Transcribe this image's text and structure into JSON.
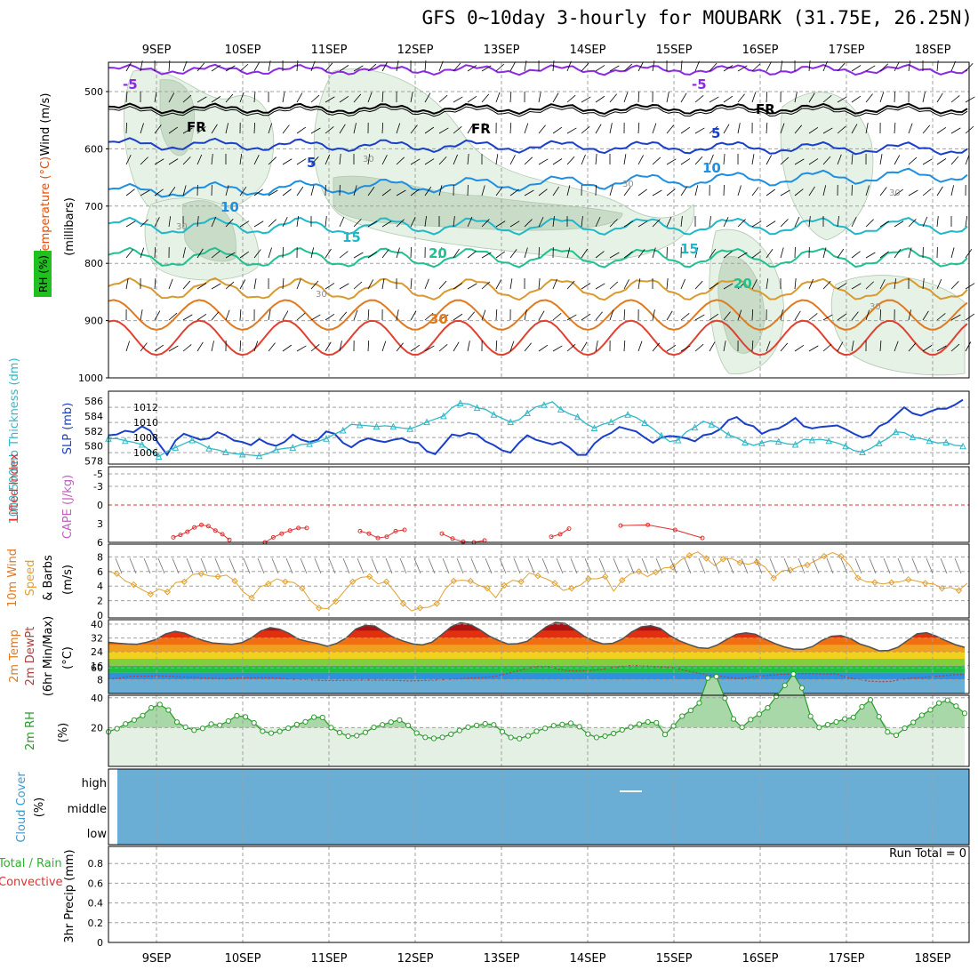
{
  "title": "GFS 0~10day 3-hourly for MOUBARK (31.75E, 26.25N)",
  "days": [
    "9SEP",
    "10SEP",
    "11SEP",
    "12SEP",
    "13SEP",
    "14SEP",
    "15SEP",
    "16SEP",
    "17SEP",
    "18SEP"
  ],
  "colors": {
    "gridline": "#a0a0a0",
    "rh_light": "#e6f2e6",
    "rh_mid": "#c8dcc8",
    "rh_dark": "#90a890",
    "slp": "#1a3fc8",
    "thickness": "#30b8c8",
    "lifted_index": "#e03030",
    "wind10m": "#e0a030",
    "temp_dark": "#505050",
    "rh2m": "#2a9a2a",
    "cloud": "#6aaed6",
    "precip_total": "#30b030",
    "precip_conv": "#e03030"
  },
  "panels": {
    "upper": {
      "label_wind": "Wind (m/s)",
      "label_temp": "Temperature (°C)",
      "label_rh": "RH (%)",
      "label_axis": "(millibars)",
      "yticks": [
        "500",
        "600",
        "700",
        "800",
        "900",
        "1000"
      ],
      "contour_labels": [
        {
          "text": "-5",
          "iso": "-5"
        },
        {
          "text": "-5",
          "iso": "-5"
        },
        {
          "text": "FR",
          "iso": "0"
        },
        {
          "text": "FR",
          "iso": "0"
        },
        {
          "text": "FR",
          "iso": "0"
        },
        {
          "text": "5",
          "iso": "5"
        },
        {
          "text": "5",
          "iso": "5"
        },
        {
          "text": "10",
          "iso": "10"
        },
        {
          "text": "10",
          "iso": "10"
        },
        {
          "text": "15",
          "iso": "15"
        },
        {
          "text": "15",
          "iso": "15"
        },
        {
          "text": "20",
          "iso": "20"
        },
        {
          "text": "20",
          "iso": "20"
        },
        {
          "text": "30",
          "iso": "30"
        },
        {
          "text": "30",
          "iso": "rh"
        },
        {
          "text": "30",
          "iso": "rh"
        },
        {
          "text": "30",
          "iso": "rh"
        },
        {
          "text": "30",
          "iso": "rh"
        },
        {
          "text": "30",
          "iso": "rh"
        },
        {
          "text": "30",
          "iso": "rh"
        }
      ]
    },
    "slp": {
      "label_thick": "1000-500mb Thickness (dm)",
      "label_slp": "SLP (mb)",
      "left_ticks": [
        "586",
        "584",
        "582",
        "580",
        "578"
      ],
      "right_ticks": [
        "1012",
        "1010",
        "1008",
        "1006"
      ]
    },
    "li": {
      "label_li": "Lifted Index",
      "label_cape": "CAPE (J/kg)",
      "ticks": [
        "-5",
        "-3",
        "0",
        "3",
        "6"
      ]
    },
    "wind10": {
      "label_1": "10m Wind",
      "label_2": "Speed",
      "label_3": "& Barbs",
      "label_unit": "(m/s)",
      "ticks": [
        "8",
        "6",
        "4",
        "2",
        "0"
      ]
    },
    "temp2m": {
      "label_1": "2m Temp",
      "label_2": "2m DewPt",
      "label_3": "(6hr Min/Max)",
      "label_unit": "(°C)",
      "ticks": [
        "40",
        "32",
        "24",
        "16",
        "8",
        "0"
      ]
    },
    "rh2m": {
      "label_1": "2m RH",
      "label_unit": "(%)",
      "ticks": [
        "60",
        "40",
        "20"
      ]
    },
    "cloud": {
      "label_1": "Cloud Cover",
      "label_unit": "(%)",
      "ticks": [
        "high",
        "middle",
        "low"
      ]
    },
    "precip": {
      "label_1": "Total / Rain",
      "label_2": "Convective",
      "label_3": "3hr Precip (mm)",
      "run_total": "Run Total = 0",
      "ticks": [
        "0.8",
        "0.6",
        "0.4",
        "0.2",
        "0"
      ]
    }
  },
  "chart_data": [
    {
      "type": "line",
      "title": "SLP (mb)",
      "ylabel": "SLP (mb)",
      "ylim": [
        1004.5,
        1013.5
      ],
      "series": [
        {
          "name": "SLP",
          "values": [
            1008.3,
            1008.4,
            1008.9,
            1008.7,
            1009.5,
            1008.9,
            1007.2,
            1005.7,
            1007.6,
            1008.5,
            1008.1,
            1007.7,
            1007.9,
            1008.7,
            1008.3,
            1007.6,
            1007.4,
            1007.0,
            1007.8,
            1007.2,
            1006.9,
            1007.4,
            1008.4,
            1007.7,
            1007.4,
            1007.7,
            1008.8,
            1008.5,
            1007.3,
            1006.7,
            1007.5,
            1007.9,
            1007.6,
            1007.4,
            1007.7,
            1007.9,
            1007.4,
            1007.3,
            1006.2,
            1005.8,
            1007.1,
            1008.4,
            1008.2,
            1008.6,
            1008.4,
            1007.5,
            1007.0,
            1006.3,
            1006.0,
            1007.3,
            1008.3,
            1007.7,
            1007.4,
            1007.1,
            1007.4,
            1006.7,
            1005.7,
            1005.7,
            1007.2,
            1008.1,
            1008.6,
            1009.4,
            1009.1,
            1008.8,
            1008.0,
            1007.3,
            1008.0,
            1008.2,
            1008.1,
            1007.9,
            1007.5,
            1008.3,
            1008.5,
            1009.1,
            1010.3,
            1010.7,
            1009.8,
            1009.5,
            1008.5,
            1009.0,
            1009.2,
            1009.8,
            1010.6,
            1009.5,
            1009.2,
            1009.4,
            1009.5,
            1009.6,
            1009.1,
            1008.5,
            1008.0,
            1008.3,
            1009.5,
            1010.0,
            1011.0,
            1012.0,
            1011.2,
            1010.9,
            1011.4,
            1011.8,
            1011.8,
            1012.3,
            1013.0
          ]
        }
      ]
    },
    {
      "type": "line",
      "title": "1000-500mb Thickness (dm)",
      "ylabel": "1000-500mb Thickness (dm)",
      "ylim": [
        577.7,
        587.0
      ],
      "series": [
        {
          "name": "Thickness",
          "values": [
            581.0,
            581.0,
            580.7,
            580.5,
            580.2,
            579.4,
            578.6,
            579.3,
            579.8,
            580.3,
            580.8,
            580.3,
            579.7,
            579.5,
            579.2,
            579.0,
            578.9,
            578.8,
            578.7,
            579.0,
            579.5,
            579.7,
            579.8,
            580.2,
            580.3,
            580.6,
            581.0,
            581.6,
            582.1,
            582.9,
            582.8,
            582.7,
            582.6,
            582.7,
            582.6,
            582.4,
            582.3,
            582.7,
            583.2,
            583.6,
            584.0,
            585.1,
            585.7,
            585.6,
            585.1,
            584.9,
            584.2,
            583.7,
            583.2,
            583.5,
            584.4,
            585.2,
            585.5,
            585.9,
            584.9,
            584.3,
            583.9,
            583.0,
            582.4,
            582.9,
            583.2,
            583.8,
            584.2,
            583.8,
            583.1,
            582.3,
            581.4,
            580.6,
            580.8,
            581.9,
            582.5,
            583.3,
            582.9,
            582.3,
            581.5,
            581.1,
            580.5,
            580.1,
            580.4,
            580.7,
            580.6,
            580.3,
            580.2,
            580.9,
            580.8,
            580.9,
            580.7,
            580.4,
            580.0,
            579.4,
            579.2,
            579.7,
            580.4,
            581.0,
            581.9,
            581.8,
            581.2,
            581.0,
            580.7,
            580.4,
            580.5,
            580.1,
            580.0
          ]
        }
      ]
    },
    {
      "type": "line",
      "title": "Lifted Index",
      "ylabel": "Lifted Index",
      "ylim": [
        -5,
        6
      ],
      "series": [
        {
          "name": "Lifted Index",
          "values": [
            5.2,
            4.8,
            4.3,
            3.6,
            3.2,
            3.4,
            4.1,
            4.7,
            5.6,
            6.0,
            5.2,
            4.6,
            4.1,
            3.7,
            3.7,
            4.2,
            4.6,
            5.3,
            5.1,
            4.2,
            4.0,
            4.6,
            5.4,
            5.9,
            6.0,
            5.7,
            5.1,
            4.7,
            3.8,
            3.3,
            3.2,
            4.0,
            5.3
          ]
        }
      ]
    },
    {
      "type": "line",
      "title": "10m Wind Speed",
      "ylabel": "(m/s)",
      "ylim": [
        0,
        9
      ],
      "series": [
        {
          "name": "10m Wind Speed",
          "values": [
            6.0,
            5.7,
            4.7,
            4.2,
            3.5,
            2.9,
            3.6,
            3.2,
            4.5,
            4.6,
            5.6,
            5.7,
            5.4,
            5.3,
            5.5,
            4.7,
            3.2,
            2.4,
            3.9,
            4.3,
            5.0,
            4.6,
            4.5,
            3.7,
            2.0,
            1.0,
            0.9,
            1.9,
            3.3,
            4.6,
            5.2,
            5.3,
            4.3,
            4.6,
            3.2,
            1.6,
            0.6,
            1.0,
            1.1,
            1.6,
            3.6,
            4.7,
            4.8,
            4.7,
            4.1,
            3.7,
            2.4,
            4.1,
            4.8,
            4.6,
            5.8,
            5.4,
            5.0,
            4.4,
            3.4,
            3.7,
            4.1,
            5.0,
            5.0,
            5.3,
            3.3,
            4.8,
            5.7,
            6.0,
            5.3,
            5.9,
            6.5,
            6.6,
            7.6,
            8.2,
            8.7,
            7.8,
            6.8,
            7.7,
            7.8,
            7.2,
            7.0,
            7.3,
            6.6,
            5.1,
            6.1,
            6.2,
            6.7,
            6.9,
            7.5,
            8.1,
            8.6,
            8.1,
            6.9,
            5.1,
            4.6,
            4.5,
            4.3,
            4.5,
            4.6,
            4.9,
            4.7,
            4.4,
            4.3,
            3.7,
            3.8,
            3.4,
            4.4
          ]
        }
      ]
    },
    {
      "type": "area",
      "title": "2m Temp",
      "ylabel": "(°C)",
      "ylim": [
        0,
        42
      ],
      "series": [
        {
          "name": "2m Temp",
          "values": [
            29.5,
            29.0,
            28.6,
            28.4,
            29.5,
            31.2,
            34.3,
            35.8,
            34.8,
            32.4,
            30.5,
            29.1,
            28.7,
            28.4,
            29.3,
            32.0,
            36.0,
            38.0,
            37.1,
            34.6,
            31.3,
            29.9,
            28.8,
            27.3,
            28.9,
            32.1,
            37.2,
            39.3,
            38.9,
            35.4,
            32.3,
            30.2,
            28.6,
            28.0,
            29.6,
            33.8,
            38.4,
            40.8,
            39.9,
            36.9,
            33.2,
            30.6,
            28.5,
            28.7,
            30.1,
            34.2,
            38.4,
            41.0,
            40.4,
            36.9,
            33.1,
            30.3,
            28.6,
            28.9,
            31.3,
            35.5,
            38.4,
            39.1,
            37.6,
            33.5,
            30.4,
            28.3,
            26.4,
            26.0,
            28.0,
            31.2,
            34.1,
            35.0,
            34.2,
            31.4,
            28.9,
            26.9,
            25.6,
            25.5,
            27.1,
            30.6,
            33.0,
            33.4,
            31.7,
            28.5,
            26.8,
            24.6,
            24.8,
            26.7,
            30.6,
            34.4,
            35.1,
            33.1,
            30.5,
            28.2,
            26.6
          ]
        },
        {
          "name": "2m DewPt",
          "values": [
            8.4,
            8.8,
            9.9,
            10.0,
            10.1,
            10.2,
            9.9,
            9.5,
            9.4,
            9.0,
            8.7,
            8.5,
            9.0,
            9.0,
            9.2,
            9.1,
            8.8,
            8.3,
            8.1,
            7.8,
            7.5,
            7.5,
            7.6,
            7.7,
            7.8,
            7.7,
            7.6,
            7.5,
            7.3,
            7.4,
            7.6,
            7.9,
            8.2,
            8.6,
            9.0,
            9.2,
            9.8,
            11.0,
            12.6,
            14.3,
            15.5,
            15.7,
            14.1,
            13.1,
            12.9,
            13.3,
            13.9,
            14.8,
            15.7,
            16.2,
            16.0,
            15.6,
            15.2,
            14.7,
            13.0,
            11.9,
            10.6,
            10.1,
            9.3,
            8.5,
            9.5,
            10.1,
            10.6,
            11.1,
            11.3,
            11.5,
            11.4,
            11.2,
            11.4,
            9.2,
            8.3,
            7.2,
            6.8,
            6.9,
            8.0,
            9.0,
            9.2,
            9.8,
            10.2,
            10.8,
            10.9
          ]
        }
      ]
    },
    {
      "type": "area",
      "title": "2m RH",
      "ylabel": "(%)",
      "ylim": [
        0,
        60
      ],
      "series": [
        {
          "name": "2m RH",
          "values": [
            17.2,
            19.3,
            22.5,
            25.1,
            28.1,
            33.3,
            35.5,
            31.8,
            23.7,
            20.3,
            18.3,
            19.5,
            22.4,
            21.6,
            24.4,
            28.0,
            27.2,
            23.2,
            17.6,
            16.3,
            17.5,
            19.6,
            22.1,
            23.9,
            27.0,
            26.8,
            20.0,
            16.7,
            14.3,
            14.6,
            16.8,
            20.2,
            21.9,
            23.7,
            25.1,
            21.5,
            16.4,
            13.5,
            12.8,
            13.5,
            15.6,
            18.1,
            20.3,
            21.5,
            22.6,
            21.9,
            17.3,
            13.4,
            12.6,
            14.5,
            17.6,
            19.5,
            21.3,
            22.1,
            22.9,
            20.6,
            15.7,
            13.4,
            14.3,
            16.1,
            18.5,
            20.4,
            22.3,
            23.8,
            23.3,
            15.4,
            21.1,
            27.7,
            31.5,
            36.5,
            53.2,
            54.2,
            39.7,
            25.8,
            20.2,
            25.4,
            29.0,
            33.3,
            41.0,
            48.3,
            55.9,
            46.6,
            27.6,
            20.1,
            22.0,
            23.8,
            25.8,
            26.9,
            34.0,
            38.6,
            27.3,
            17.1,
            14.9,
            19.6,
            23.5,
            28.3,
            31.9,
            36.5,
            38.3,
            34.4,
            29.6
          ]
        }
      ]
    },
    {
      "type": "bar",
      "title": "3hr Precip (mm)",
      "ylabel": "3hr Precip (mm)",
      "ylim": [
        0,
        1
      ],
      "series": [
        {
          "name": "Total",
          "values": []
        },
        {
          "name": "Convective",
          "values": []
        }
      ]
    }
  ]
}
